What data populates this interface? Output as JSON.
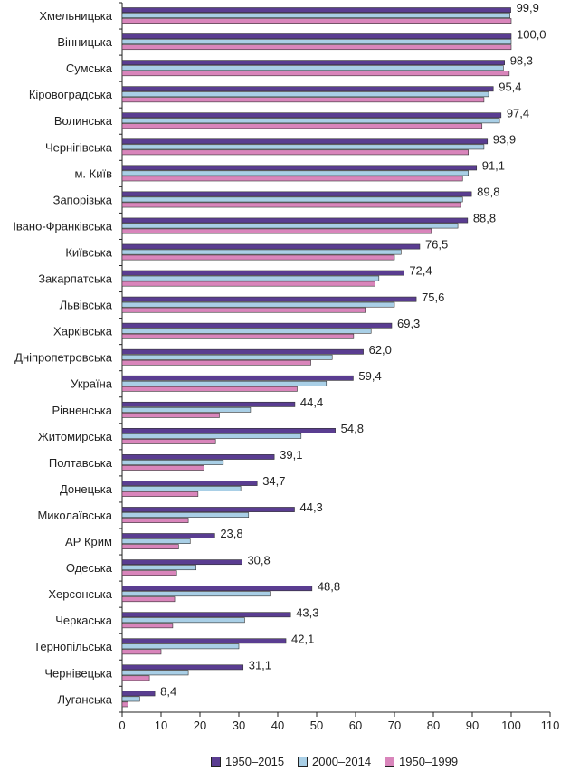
{
  "chart_data": {
    "type": "bar",
    "orientation": "horizontal",
    "categories": [
      "Хмельницька",
      "Вінницька",
      "Сумська",
      "Кіровоградська",
      "Волинська",
      "Чернігівська",
      "м. Київ",
      "Запорізька",
      "Івано-Франківська",
      "Київська",
      "Закарпатська",
      "Львівська",
      "Харківська",
      "Дніпропетровська",
      "Україна",
      "Рівненська",
      "Житомирська",
      "Полтавська",
      "Донецька",
      "Миколаївська",
      "АР Крим",
      "Одеська",
      "Херсонська",
      "Черкаська",
      "Тернопільська",
      "Чернівецька",
      "Луганська"
    ],
    "series": [
      {
        "name": "1950–2015",
        "color": "#5a3d91",
        "values": [
          99.9,
          100.0,
          98.3,
          95.4,
          97.4,
          93.9,
          91.1,
          89.8,
          88.8,
          76.5,
          72.4,
          75.6,
          69.3,
          62.0,
          59.4,
          44.4,
          54.8,
          39.1,
          34.7,
          44.3,
          23.8,
          30.8,
          48.8,
          43.3,
          42.1,
          31.1,
          8.4
        ],
        "labels": [
          "99,9",
          "100,0",
          "98,3",
          "95,4",
          "97,4",
          "93,9",
          "91,1",
          "89,8",
          "88,8",
          "76,5",
          "72,4",
          "75,6",
          "69,3",
          "62,0",
          "59,4",
          "44,4",
          "54,8",
          "39,1",
          "34,7",
          "44,3",
          "23,8",
          "30,8",
          "48,8",
          "43,3",
          "42,1",
          "31,1",
          "8,4"
        ]
      },
      {
        "name": "2000–2014",
        "color": "#a9cfe6",
        "values": [
          99.7,
          100.0,
          98.0,
          94.2,
          97.0,
          93.0,
          89.0,
          87.5,
          86.3,
          71.7,
          66.0,
          70.0,
          64.0,
          54.0,
          52.5,
          33.0,
          46.0,
          26.0,
          30.5,
          32.5,
          17.5,
          19.0,
          38.0,
          31.5,
          30.0,
          17.0,
          4.5
        ]
      },
      {
        "name": "1950–1999",
        "color": "#d985bb",
        "values": [
          100.0,
          100.0,
          99.5,
          93.0,
          92.5,
          89.0,
          87.5,
          87.0,
          79.5,
          70.0,
          65.0,
          62.5,
          59.5,
          48.5,
          45.0,
          25.0,
          24.0,
          21.0,
          19.5,
          17.0,
          14.5,
          14.0,
          13.5,
          13.0,
          10.0,
          7.0,
          1.5
        ]
      }
    ],
    "xlim": [
      0,
      110
    ],
    "xticks": [
      "0",
      "10",
      "20",
      "30",
      "40",
      "50",
      "60",
      "70",
      "80",
      "90",
      "100",
      "110"
    ],
    "grid": false,
    "legend_position": "bottom"
  }
}
